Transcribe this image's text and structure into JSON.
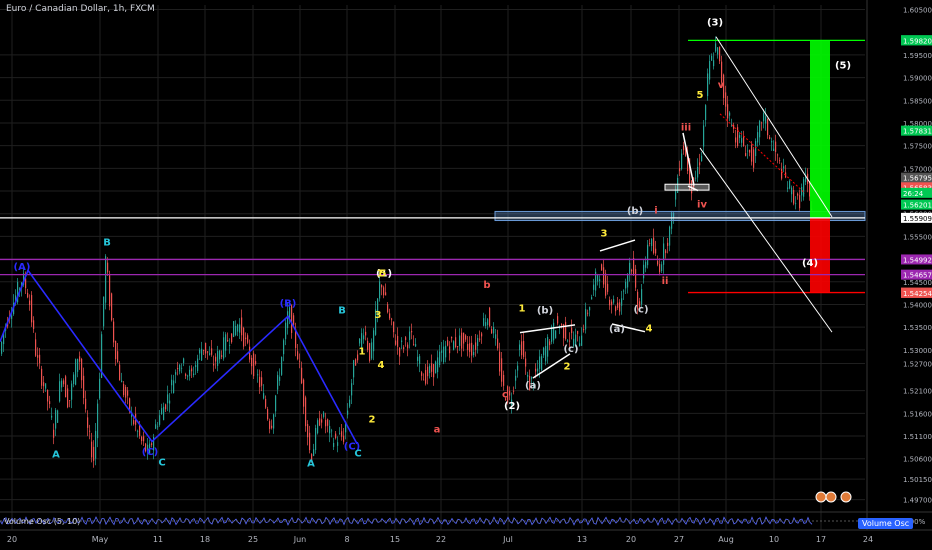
{
  "header": {
    "title": "Euro / Canadian Dollar, 1h, FXCM"
  },
  "oscillator": {
    "label": "Volume Osc (5, 10)",
    "badge": "Volume Osc",
    "value": "0.00%"
  },
  "colors": {
    "bg": "#000000",
    "up": "#26a69a",
    "down": "#ef5350",
    "grid": "#1f1f1f",
    "wave_blue": "#2a2aff",
    "purple": "#9c27b0",
    "green": "#00ff00",
    "red": "#ff0000",
    "white": "#ffffff",
    "yellow": "#ffeb3b",
    "cyan": "#26c6da",
    "blue_box": "#6a9bd8"
  },
  "chart_data": {
    "type": "candlestick",
    "title": "Euro / Canadian Dollar, 1h, FXCM",
    "x_ticks": [
      "20",
      "May",
      "11",
      "18",
      "25",
      "Jun",
      "8",
      "15",
      "22",
      "Jul",
      "13",
      "20",
      "27",
      "Aug",
      "10",
      "17",
      "24"
    ],
    "ylim": [
      1.4947,
      1.606
    ],
    "y_ticks": [
      1.605,
      1.595,
      1.59,
      1.585,
      1.58,
      1.575,
      1.57,
      1.565,
      1.56,
      1.555,
      1.55,
      1.545,
      1.54,
      1.535,
      1.53,
      1.527,
      1.521,
      1.516,
      1.511,
      1.506,
      1.5015,
      1.497
    ],
    "price_labels": [
      {
        "value": 1.59825,
        "text": "1.59825",
        "color": "#00c853"
      },
      {
        "value": 1.5982,
        "text": "1.59820",
        "color": "#00c853"
      },
      {
        "value": 1.57831,
        "text": "1.57831",
        "color": "#00c853"
      },
      {
        "value": 1.56795,
        "text": "1.56795",
        "color": "#555555"
      },
      {
        "value": 1.56583,
        "text": "1.56583",
        "color": "#ef5350"
      },
      {
        "value": 1.5646,
        "text": "26:24",
        "color": "#00c853"
      },
      {
        "value": 1.56201,
        "text": "1.56201",
        "color": "#00c853"
      },
      {
        "value": 1.55909,
        "text": "1.55909",
        "color": "#ffffff"
      },
      {
        "value": 1.54992,
        "text": "1.54992",
        "color": "#9c27b0"
      },
      {
        "value": 1.54657,
        "text": "1.54657",
        "color": "#9c27b0"
      },
      {
        "value": 1.54262,
        "text": "1.54262",
        "color": "#ef5350"
      },
      {
        "value": 1.54254,
        "text": "1.54254",
        "color": "#ef5350"
      }
    ],
    "price_path": [
      [
        0,
        1.528
      ],
      [
        6,
        1.535
      ],
      [
        14,
        1.54
      ],
      [
        24,
        1.546
      ],
      [
        30,
        1.542
      ],
      [
        38,
        1.528
      ],
      [
        48,
        1.52
      ],
      [
        55,
        1.512
      ],
      [
        63,
        1.525
      ],
      [
        70,
        1.518
      ],
      [
        80,
        1.53
      ],
      [
        88,
        1.513
      ],
      [
        95,
        1.506
      ],
      [
        101,
        1.525
      ],
      [
        107,
        1.55
      ],
      [
        114,
        1.534
      ],
      [
        122,
        1.523
      ],
      [
        132,
        1.516
      ],
      [
        142,
        1.51
      ],
      [
        150,
        1.507
      ],
      [
        158,
        1.514
      ],
      [
        170,
        1.52
      ],
      [
        180,
        1.528
      ],
      [
        192,
        1.524
      ],
      [
        204,
        1.531
      ],
      [
        215,
        1.527
      ],
      [
        228,
        1.532
      ],
      [
        240,
        1.536
      ],
      [
        252,
        1.528
      ],
      [
        262,
        1.522
      ],
      [
        272,
        1.513
      ],
      [
        280,
        1.524
      ],
      [
        290,
        1.539
      ],
      [
        300,
        1.528
      ],
      [
        312,
        1.506
      ],
      [
        322,
        1.516
      ],
      [
        334,
        1.51
      ],
      [
        345,
        1.511
      ],
      [
        355,
        1.526
      ],
      [
        365,
        1.535
      ],
      [
        372,
        1.528
      ],
      [
        382,
        1.546
      ],
      [
        390,
        1.537
      ],
      [
        400,
        1.53
      ],
      [
        412,
        1.533
      ],
      [
        425,
        1.524
      ],
      [
        436,
        1.526
      ],
      [
        448,
        1.531
      ],
      [
        462,
        1.532
      ],
      [
        475,
        1.53
      ],
      [
        488,
        1.538
      ],
      [
        496,
        1.533
      ],
      [
        505,
        1.521
      ],
      [
        512,
        1.519
      ],
      [
        522,
        1.532
      ],
      [
        530,
        1.522
      ],
      [
        538,
        1.525
      ],
      [
        548,
        1.531
      ],
      [
        558,
        1.536
      ],
      [
        570,
        1.533
      ],
      [
        580,
        1.532
      ],
      [
        592,
        1.541
      ],
      [
        600,
        1.548
      ],
      [
        612,
        1.541
      ],
      [
        620,
        1.539
      ],
      [
        632,
        1.55
      ],
      [
        640,
        1.539
      ],
      [
        650,
        1.555
      ],
      [
        660,
        1.548
      ],
      [
        672,
        1.557
      ],
      [
        684,
        1.576
      ],
      [
        694,
        1.565
      ],
      [
        703,
        1.574
      ],
      [
        710,
        1.592
      ],
      [
        718,
        1.597
      ],
      [
        726,
        1.585
      ],
      [
        735,
        1.578
      ],
      [
        745,
        1.575
      ],
      [
        755,
        1.572
      ],
      [
        764,
        1.582
      ],
      [
        772,
        1.576
      ],
      [
        782,
        1.57
      ],
      [
        792,
        1.565
      ],
      [
        800,
        1.562
      ],
      [
        806,
        1.568
      ],
      [
        812,
        1.562
      ]
    ],
    "waves": {
      "blue_zigzag": [
        [
          0,
          1.5318
        ],
        [
          28,
          1.5475
        ],
        [
          152,
          1.5098
        ],
        [
          288,
          1.5374
        ],
        [
          357,
          1.5093
        ]
      ],
      "white_lines": [
        [
          [
            520,
            1.5338
          ],
          [
            575,
            1.5355
          ]
        ],
        [
          [
            533,
            1.5238
          ],
          [
            570,
            1.5291
          ]
        ],
        [
          [
            600,
            1.5518
          ],
          [
            635,
            1.5542
          ]
        ],
        [
          [
            612,
            1.5357
          ],
          [
            645,
            1.534
          ]
        ],
        [
          [
            683,
            1.5778
          ],
          [
            694,
            1.5662
          ]
        ],
        [
          [
            688,
            1.5661
          ],
          [
            698,
            1.5651
          ]
        ]
      ],
      "channel": [
        [
          [
            716,
            1.599
          ],
          [
            832,
            1.5593
          ]
        ],
        [
          [
            700,
            1.5745
          ],
          [
            832,
            1.5339
          ]
        ]
      ],
      "dotted_red": [
        [
          720,
          1.582
        ],
        [
          805,
          1.5645
        ]
      ]
    },
    "levels": [
      {
        "value": 1.55909,
        "color": "#ffffff",
        "x_from": 0
      },
      {
        "value": 1.54992,
        "color": "#9c27b0",
        "x_from": 0
      },
      {
        "value": 1.54657,
        "color": "#9c27b0",
        "x_from": 0
      },
      {
        "value": 1.5982,
        "color": "#00ff00",
        "x_from": 688
      },
      {
        "value": 1.54262,
        "color": "#ff0000",
        "x_from": 688
      }
    ],
    "zones": [
      {
        "type": "box",
        "x1": 495,
        "x2": 865,
        "y1": 1.5605,
        "y2": 1.5585,
        "color": "#6a9bd8"
      },
      {
        "type": "box",
        "x1": 665,
        "x2": 709,
        "y1": 1.5665,
        "y2": 1.5652,
        "color": "#ffffff"
      },
      {
        "type": "fill",
        "x1": 810,
        "x2": 830,
        "y1": 1.59825,
        "y2": 1.559,
        "color": "#00ff00"
      },
      {
        "type": "fill",
        "x1": 810,
        "x2": 830,
        "y1": 1.559,
        "y2": 1.5426,
        "color": "#ff0000"
      }
    ],
    "annotations": [
      {
        "text": "(3)",
        "x": 715,
        "y": 1.6015,
        "color": "#ffffff"
      },
      {
        "text": "(5)",
        "x": 843,
        "y": 1.592,
        "color": "#ffffff"
      },
      {
        "text": "5",
        "x": 700,
        "y": 1.5855,
        "color": "#ffeb3b"
      },
      {
        "text": "(4)",
        "x": 810,
        "y": 1.5485,
        "color": "#ffffff"
      },
      {
        "text": "B",
        "x": 107,
        "y": 1.553,
        "color": "#26c6da"
      },
      {
        "text": "A",
        "x": 56,
        "y": 1.5063,
        "color": "#26c6da"
      },
      {
        "text": "C",
        "x": 162,
        "y": 1.5045,
        "color": "#26c6da"
      },
      {
        "text": "(A)",
        "x": 22,
        "y": 1.5476,
        "color": "#2a2aff"
      },
      {
        "text": "(B)",
        "x": 288,
        "y": 1.5395,
        "color": "#2a2aff"
      },
      {
        "text": "(C)",
        "x": 150,
        "y": 1.5068,
        "color": "#2a2aff"
      },
      {
        "text": "(C)",
        "x": 352,
        "y": 1.508,
        "color": "#2a2aff"
      },
      {
        "text": "B",
        "x": 342,
        "y": 1.538,
        "color": "#26c6da"
      },
      {
        "text": "A",
        "x": 311,
        "y": 1.5043,
        "color": "#26c6da"
      },
      {
        "text": "C",
        "x": 358,
        "y": 1.5065,
        "color": "#26c6da"
      },
      {
        "text": "(1)",
        "x": 384,
        "y": 1.5462,
        "color": "#ffffff"
      },
      {
        "text": "1",
        "x": 380,
        "y": 1.5462,
        "color": "#ffeb3b"
      },
      {
        "text": "1",
        "x": 362,
        "y": 1.529,
        "color": "#ffeb3b"
      },
      {
        "text": "2",
        "x": 372,
        "y": 1.514,
        "color": "#ffeb3b"
      },
      {
        "text": "3",
        "x": 378,
        "y": 1.537,
        "color": "#ffeb3b"
      },
      {
        "text": "4",
        "x": 381,
        "y": 1.526,
        "color": "#ffeb3b"
      },
      {
        "text": "5",
        "x": 383,
        "y": 1.5462,
        "color": "#ffeb3b"
      },
      {
        "text": "a",
        "x": 437,
        "y": 1.5118,
        "color": "#ef5350"
      },
      {
        "text": "b",
        "x": 487,
        "y": 1.5436,
        "color": "#ef5350"
      },
      {
        "text": "c",
        "x": 505,
        "y": 1.5195,
        "color": "#ef5350"
      },
      {
        "text": "(2)",
        "x": 512,
        "y": 1.517,
        "color": "#ffffff"
      },
      {
        "text": "1",
        "x": 522,
        "y": 1.5385,
        "color": "#ffeb3b"
      },
      {
        "text": "2",
        "x": 567,
        "y": 1.5257,
        "color": "#ffeb3b"
      },
      {
        "text": "(a)",
        "x": 533,
        "y": 1.5215,
        "color": "#d1d4dc"
      },
      {
        "text": "(b)",
        "x": 545,
        "y": 1.538,
        "color": "#d1d4dc"
      },
      {
        "text": "(c)",
        "x": 571,
        "y": 1.5295,
        "color": "#d1d4dc"
      },
      {
        "text": "3",
        "x": 604,
        "y": 1.555,
        "color": "#ffeb3b"
      },
      {
        "text": "4",
        "x": 649,
        "y": 1.534,
        "color": "#ffeb3b"
      },
      {
        "text": "(a)",
        "x": 617,
        "y": 1.5339,
        "color": "#d1d4dc"
      },
      {
        "text": "(b)",
        "x": 635,
        "y": 1.5599,
        "color": "#d1d4dc"
      },
      {
        "text": "(c)",
        "x": 641,
        "y": 1.5382,
        "color": "#d1d4dc"
      },
      {
        "text": "i",
        "x": 656,
        "y": 1.56,
        "color": "#ef5350"
      },
      {
        "text": "ii",
        "x": 665,
        "y": 1.5445,
        "color": "#ef5350"
      },
      {
        "text": "iii",
        "x": 686,
        "y": 1.5783,
        "color": "#ef5350"
      },
      {
        "text": "iv",
        "x": 702,
        "y": 1.5614,
        "color": "#ef5350"
      },
      {
        "text": "v",
        "x": 721,
        "y": 1.5877,
        "color": "#ef5350"
      }
    ]
  }
}
